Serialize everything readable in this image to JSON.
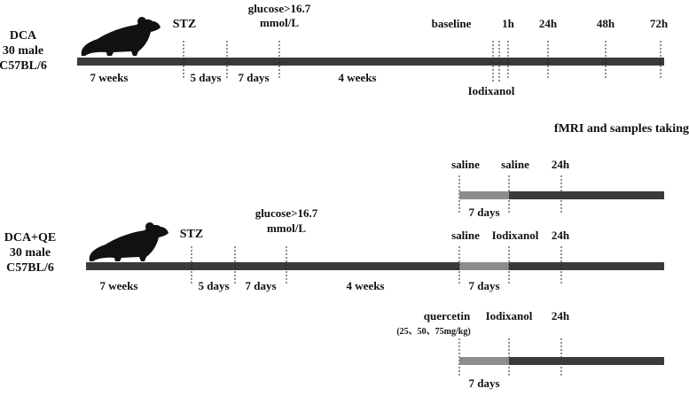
{
  "colors": {
    "bar": "#3a3a3a",
    "bar_light": "#8c8c8c",
    "tick": "#222222",
    "mouse": "#111111"
  },
  "group1": {
    "name_line1": "DCA",
    "name_line2": "30 male",
    "name_line3": "C57BL/6",
    "icon": "mouse-icon",
    "stz": "STZ",
    "glucose_line1": "glucose>16.7",
    "glucose_line2": "mmol/L",
    "baseline": "baseline",
    "t1h": "1h",
    "t24h": "24h",
    "t48h": "48h",
    "t72h": "72h",
    "period_7weeks": "7 weeks",
    "period_5days": "5 days",
    "period_7days": "7 days",
    "period_4weeks": "4 weeks",
    "contrast": "Iodixanol"
  },
  "section_title": "fMRI and samples taking",
  "saline_group": {
    "label_start": "saline",
    "label_mid": "saline",
    "label_end": "24h",
    "period": "7 days"
  },
  "group2": {
    "name_line1": "DCA+QE",
    "name_line2": "30 male",
    "name_line3": "C57BL/6",
    "icon": "mouse-icon",
    "stz": "STZ",
    "glucose_line1": "glucose>16.7",
    "glucose_line2": "mmol/L",
    "label_start": "saline",
    "label_mid": "Iodixanol",
    "label_end": "24h",
    "period_7weeks": "7 weeks",
    "period_5days": "5 days",
    "period_7days": "7 days",
    "period_4weeks": "4 weeks",
    "period_7days_b": "7 days"
  },
  "quercetin_group": {
    "label_start": "quercetin",
    "dose": "(25、50、75mg/kg)",
    "label_mid": "Iodixanol",
    "label_end": "24h",
    "period": "7 days"
  }
}
